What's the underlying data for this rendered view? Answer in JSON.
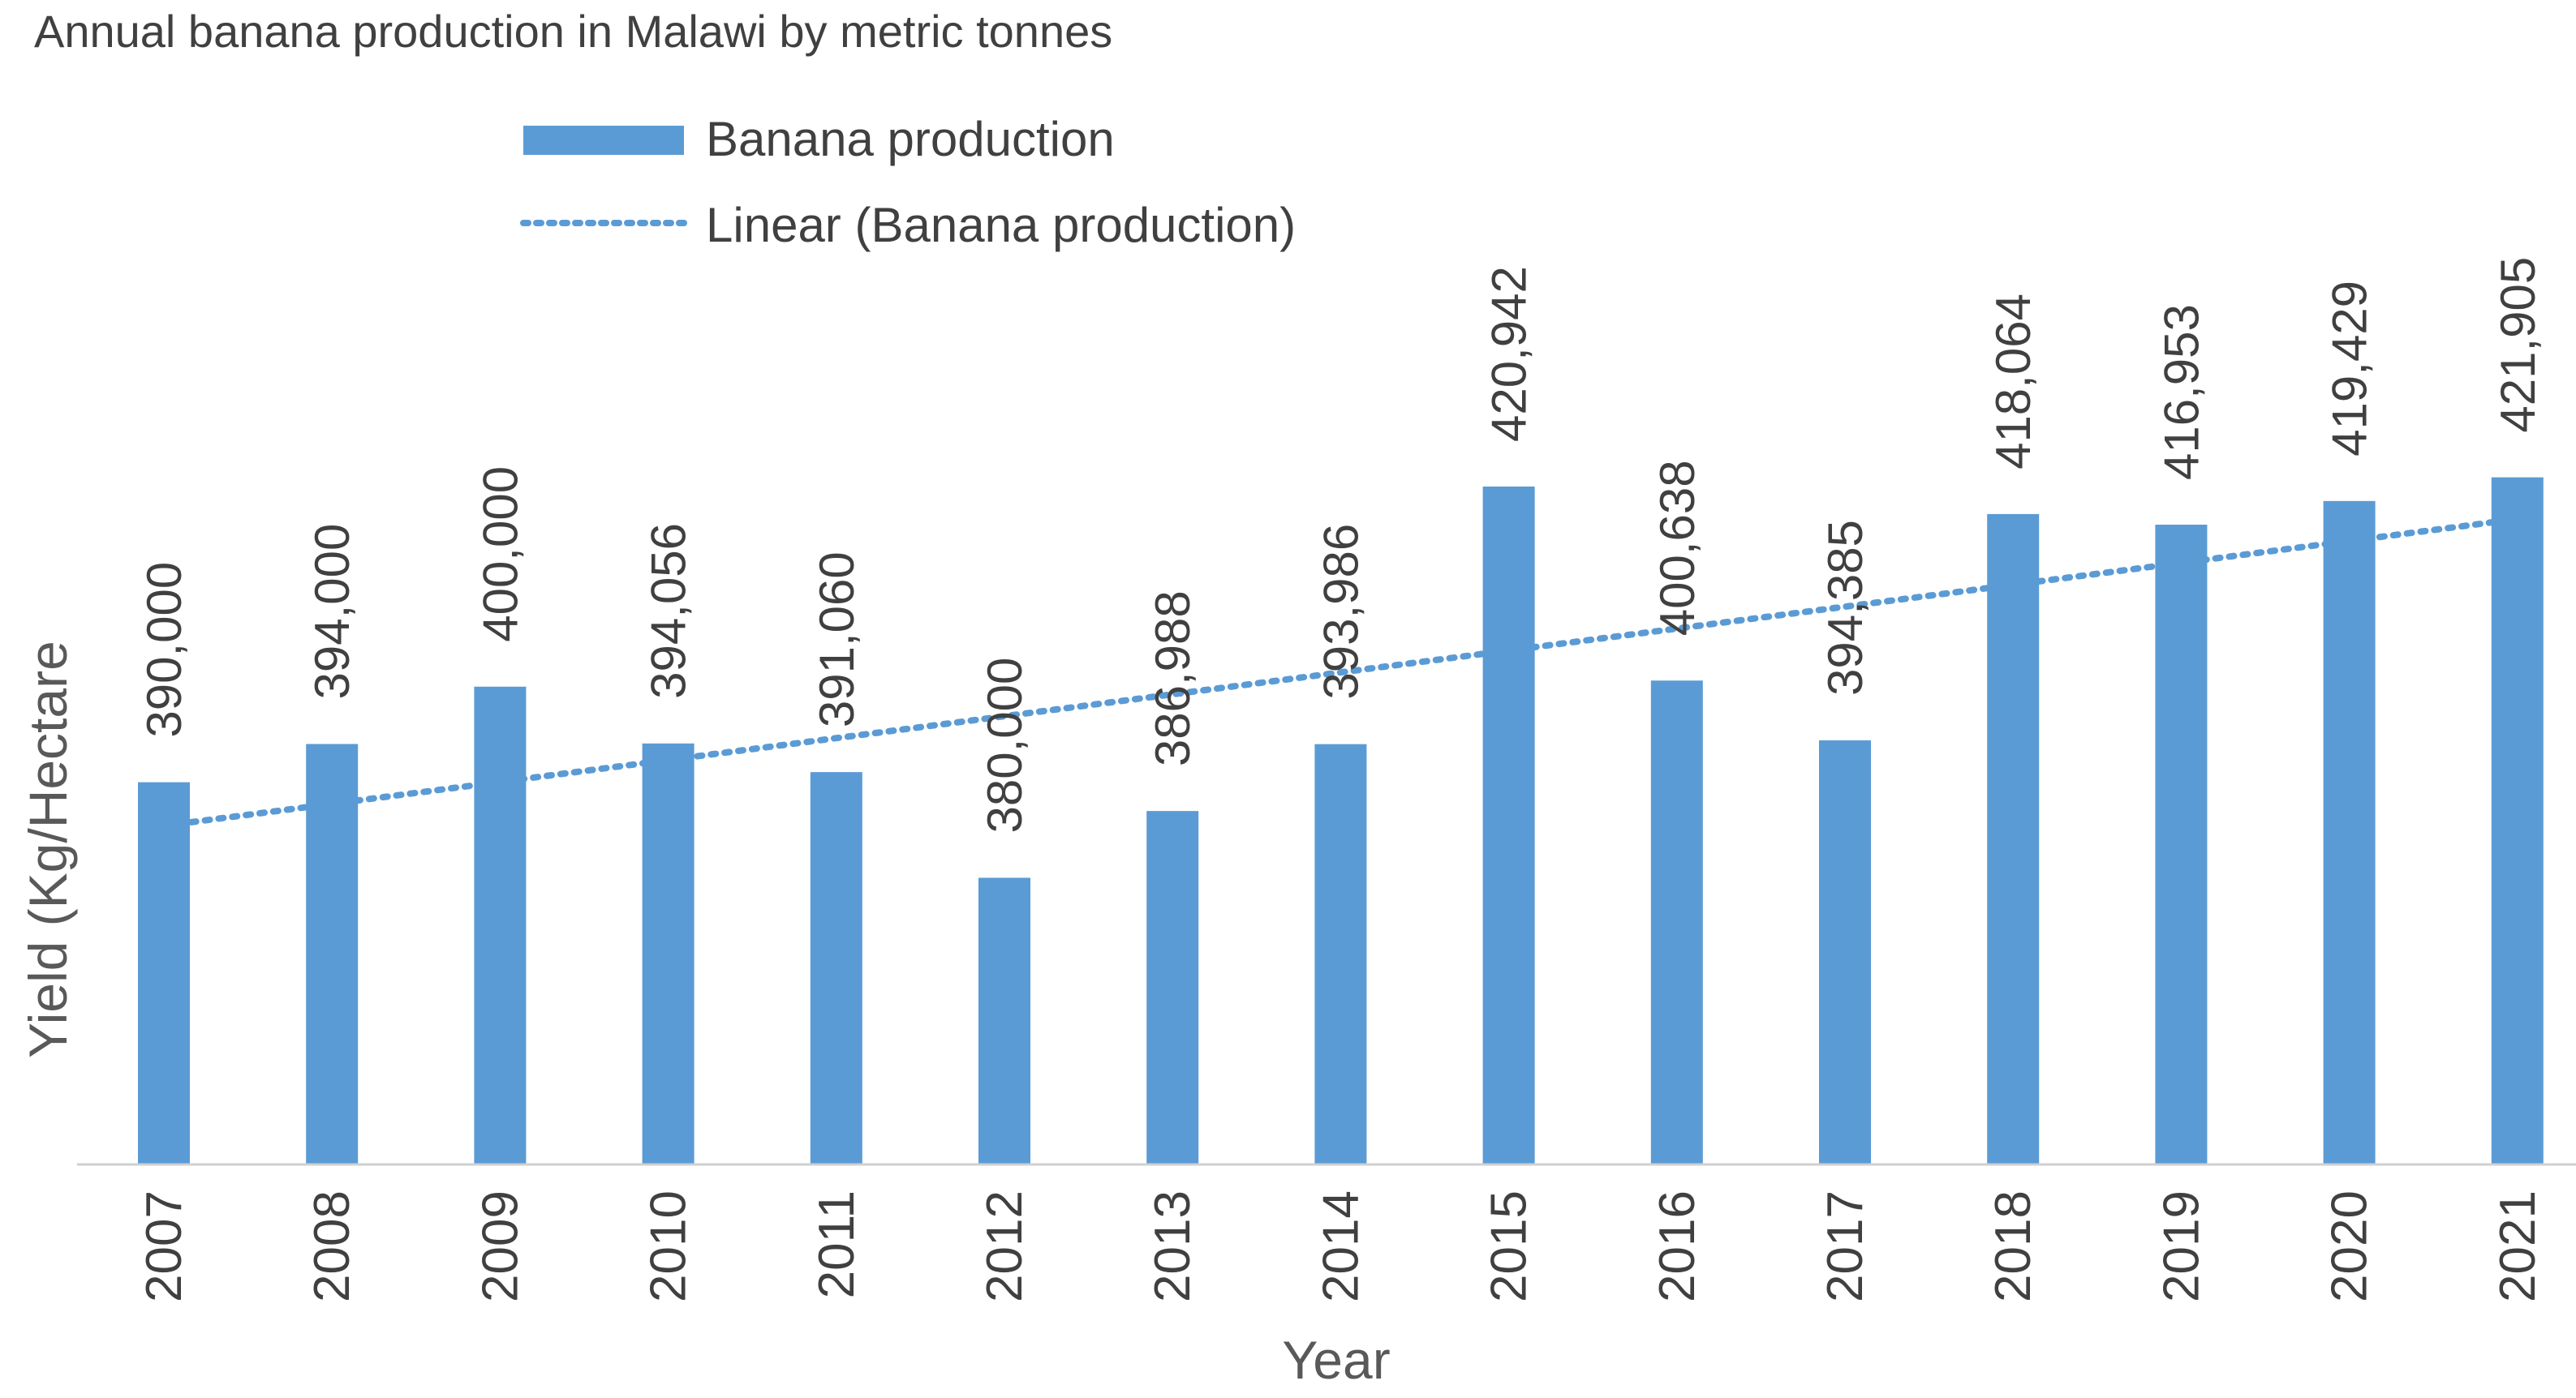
{
  "chart_data": {
    "type": "bar",
    "title": "Annual banana production in Malawi by metric tonnes",
    "xlabel": "Year",
    "ylabel": "Yield (Kg/Hectare",
    "categories": [
      "2007",
      "2008",
      "2009",
      "2010",
      "2011",
      "2012",
      "2013",
      "2014",
      "2015",
      "2016",
      "2017",
      "2018",
      "2019",
      "2020",
      "2021"
    ],
    "series": [
      {
        "name": "Banana production",
        "values": [
          390000,
          394000,
          400000,
          394056,
          391060,
          380000,
          386988,
          393986,
          420942,
          400638,
          394385,
          418064,
          416953,
          419429,
          421905
        ],
        "labels": [
          "390,000",
          "394,000",
          "400,000",
          "394,056",
          "391,060",
          "380,000",
          "386,988",
          "393,986",
          "420,942",
          "400,638",
          "394,385",
          "418,064",
          "416,953",
          "419,429",
          "421,905"
        ],
        "color": "#5B9BD5"
      }
    ],
    "trendline": {
      "name": "Linear (Banana production)",
      "type": "linear",
      "style": "dotted",
      "color": "#5B9BD5"
    },
    "ylim": [
      350000,
      430000
    ],
    "grid": false,
    "legend_position": "top-center"
  }
}
